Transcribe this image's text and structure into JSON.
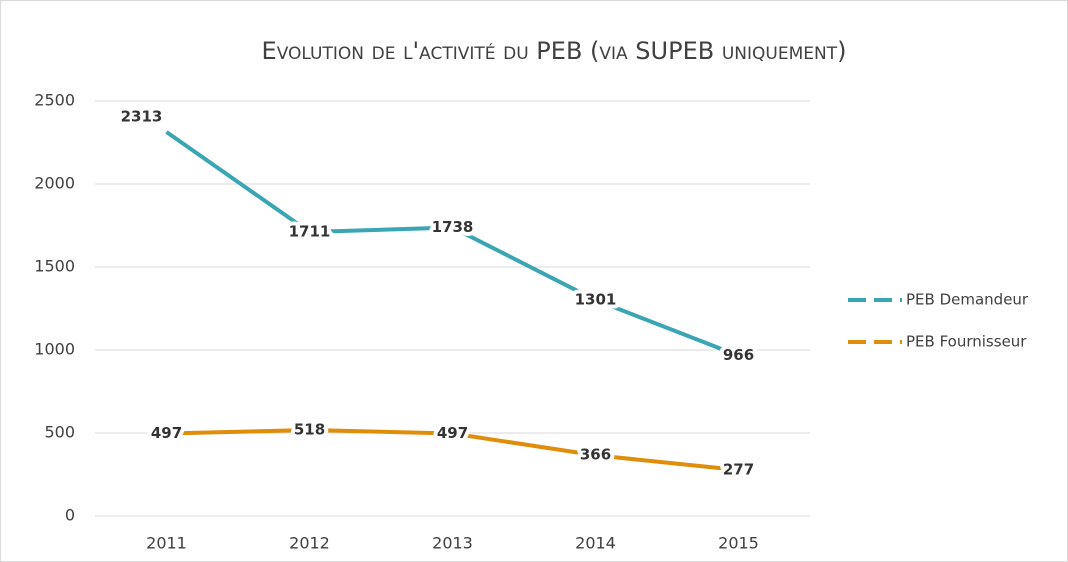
{
  "chart_data": {
    "type": "line",
    "title": "Evolution de l'activité du PEB (via SUPEB uniquement)",
    "categories": [
      "2011",
      "2012",
      "2013",
      "2014",
      "2015"
    ],
    "series": [
      {
        "name": "PEB Demandeur",
        "color": "#3aa5b3",
        "values": [
          2313,
          1711,
          1738,
          1301,
          966
        ]
      },
      {
        "name": "PEB Fournisseur",
        "color": "#e08d0c",
        "values": [
          497,
          518,
          497,
          366,
          277
        ]
      }
    ],
    "ylim": [
      0,
      2500
    ],
    "yticks": [
      0,
      500,
      1000,
      1500,
      2000,
      2500
    ],
    "grid": true,
    "legend": "right"
  }
}
